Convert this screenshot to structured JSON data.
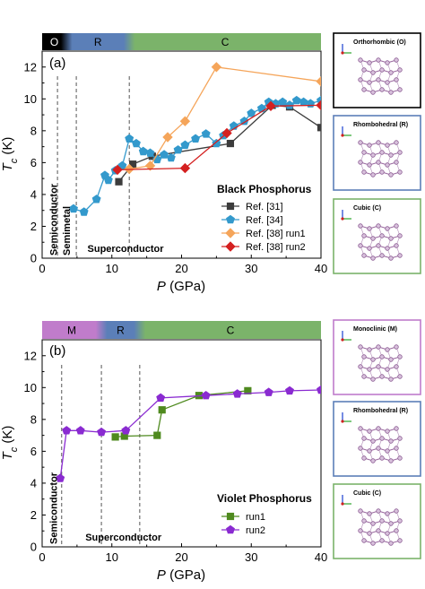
{
  "axes": {
    "xlabel_var": "P",
    "xlabel_unit": " (GPa)",
    "ylabel_var": "T",
    "ylabel_sub": "c",
    "ylabel_unit": " (K)"
  },
  "chart_data": [
    {
      "type": "line",
      "panel_label": "(a)",
      "legend_title": "Black Phosphorus",
      "xlim": [
        0,
        40
      ],
      "ylim": [
        0,
        13
      ],
      "xticks": [
        0,
        10,
        20,
        30,
        40
      ],
      "yticks": [
        0,
        2,
        4,
        6,
        8,
        10,
        12
      ],
      "phase_bar": [
        {
          "label": "O",
          "from": 0,
          "to": 3.5,
          "color": "#000000",
          "text_color": "#ffffff"
        },
        {
          "label": "R",
          "from": 3.5,
          "to": 12.5,
          "color": "#5b7fb8",
          "text_color": "#000000"
        },
        {
          "label": "C",
          "from": 12.5,
          "to": 40,
          "color": "#7bb36a",
          "text_color": "#000000"
        }
      ],
      "dividers": [
        2.2,
        4.9,
        12.5
      ],
      "region_labels": [
        {
          "text": "Semiconductor",
          "x": 1.6,
          "vertical": true
        },
        {
          "text": "Semimetal",
          "x": 3.5,
          "vertical": true
        },
        {
          "text": "Superconductor",
          "x": 6.5,
          "vertical": false
        }
      ],
      "series": [
        {
          "name": "Ref. [31]",
          "color": "#3c3c3c",
          "marker": "square",
          "points": [
            [
              11.0,
              4.8
            ],
            [
              13.0,
              5.9
            ],
            [
              15.8,
              6.4
            ],
            [
              27.0,
              7.2
            ],
            [
              33.0,
              9.6
            ],
            [
              35.5,
              9.5
            ],
            [
              40.0,
              8.2
            ]
          ]
        },
        {
          "name": "Ref. [34]",
          "color": "#3399cc",
          "marker": "pentagon",
          "points": [
            [
              4.5,
              3.1
            ],
            [
              6.0,
              2.9
            ],
            [
              7.8,
              3.7
            ],
            [
              9.0,
              5.2
            ],
            [
              9.5,
              4.9
            ],
            [
              10.5,
              5.5
            ],
            [
              11.5,
              5.8
            ],
            [
              12.5,
              7.5
            ],
            [
              13.5,
              7.2
            ],
            [
              14.5,
              6.7
            ],
            [
              15.5,
              6.6
            ],
            [
              16.5,
              6.2
            ],
            [
              17.5,
              6.5
            ],
            [
              18.5,
              6.3
            ],
            [
              19.5,
              6.8
            ],
            [
              20.5,
              7.1
            ],
            [
              22.0,
              7.5
            ],
            [
              23.5,
              7.8
            ],
            [
              25.0,
              7.2
            ],
            [
              26.0,
              7.7
            ],
            [
              27.5,
              8.3
            ],
            [
              29.0,
              8.6
            ],
            [
              30.0,
              9.1
            ],
            [
              31.5,
              9.4
            ],
            [
              32.5,
              9.8
            ],
            [
              33.5,
              9.7
            ],
            [
              34.5,
              9.8
            ],
            [
              35.5,
              9.6
            ],
            [
              36.5,
              9.9
            ],
            [
              37.5,
              9.8
            ],
            [
              38.5,
              9.7
            ],
            [
              40.0,
              9.9
            ]
          ]
        },
        {
          "name": "Ref. [38] run1",
          "color": "#f5a55a",
          "marker": "diamond",
          "points": [
            [
              12.5,
              5.6
            ],
            [
              15.5,
              5.8
            ],
            [
              18.0,
              7.6
            ],
            [
              20.5,
              8.6
            ],
            [
              25.0,
              12.0
            ],
            [
              40.0,
              11.1
            ]
          ]
        },
        {
          "name": "Ref. [38] run2",
          "color": "#d42020",
          "marker": "diamond",
          "points": [
            [
              10.8,
              5.55
            ],
            [
              20.5,
              5.65
            ],
            [
              26.5,
              7.85
            ],
            [
              32.8,
              9.55
            ],
            [
              40.0,
              9.6
            ]
          ]
        }
      ]
    },
    {
      "type": "line",
      "panel_label": "(b)",
      "legend_title": "Violet Phosphorus",
      "xlim": [
        0,
        40
      ],
      "ylim": [
        0,
        13
      ],
      "xticks": [
        0,
        10,
        20,
        30,
        40
      ],
      "yticks": [
        0,
        2,
        4,
        6,
        8,
        10,
        12
      ],
      "phase_bar": [
        {
          "label": "M",
          "from": 0,
          "to": 8.5,
          "color": "#c07ccb",
          "text_color": "#000000"
        },
        {
          "label": "R",
          "from": 8.5,
          "to": 14.0,
          "color": "#5b7fb8",
          "text_color": "#000000"
        },
        {
          "label": "C",
          "from": 14.0,
          "to": 40,
          "color": "#7bb36a",
          "text_color": "#000000"
        }
      ],
      "dividers": [
        2.8,
        8.5,
        14.0
      ],
      "region_labels": [
        {
          "text": "Semiconductor",
          "x": 1.6,
          "vertical": true
        },
        {
          "text": "Superconductor",
          "x": 6.2,
          "vertical": false
        }
      ],
      "series": [
        {
          "name": "run1",
          "color": "#4f8a1f",
          "marker": "square",
          "points": [
            [
              10.5,
              6.9
            ],
            [
              11.8,
              6.95
            ],
            [
              16.5,
              7.0
            ],
            [
              17.2,
              8.6
            ],
            [
              22.5,
              9.5
            ],
            [
              29.5,
              9.8
            ]
          ]
        },
        {
          "name": "run2",
          "color": "#8a2bd1",
          "marker": "pentagon",
          "points": [
            [
              2.6,
              4.3
            ],
            [
              3.5,
              7.3
            ],
            [
              5.5,
              7.3
            ],
            [
              8.5,
              7.2
            ],
            [
              12.0,
              7.3
            ],
            [
              17.0,
              9.35
            ],
            [
              23.5,
              9.5
            ],
            [
              28.0,
              9.6
            ],
            [
              32.5,
              9.7
            ],
            [
              35.5,
              9.8
            ],
            [
              40.0,
              9.85
            ]
          ]
        }
      ]
    }
  ],
  "structures": [
    {
      "title": "Orthorhombic (O)",
      "border": "#000000"
    },
    {
      "title": "Rhombohedral (R)",
      "border": "#5b7fb8"
    },
    {
      "title": "Cubic (C)",
      "border": "#7bb36a"
    },
    {
      "title": "Monoclinic (M)",
      "border": "#c07ccb"
    },
    {
      "title": "Rhombohedral (R)",
      "border": "#5b7fb8"
    },
    {
      "title": "Cubic (C)",
      "border": "#7bb36a"
    }
  ]
}
